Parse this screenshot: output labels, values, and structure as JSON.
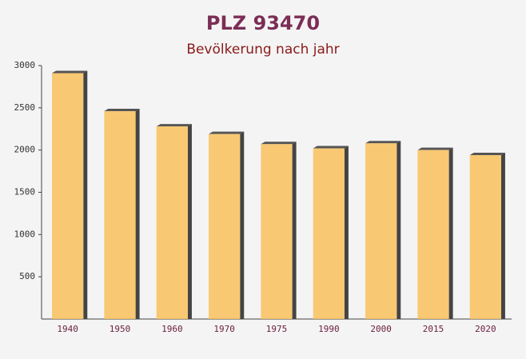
{
  "chart_data": {
    "type": "bar",
    "title": "PLZ 93470",
    "subtitle": "Bevölkerung nach jahr",
    "categories": [
      "1940",
      "1950",
      "1960",
      "1970",
      "1975",
      "1990",
      "2000",
      "2015",
      "2020"
    ],
    "values": [
      2910,
      2460,
      2280,
      2190,
      2070,
      2020,
      2080,
      2000,
      1940
    ],
    "color": "#f8c05c",
    "ylim": [
      0,
      3000
    ],
    "yticks": [
      500,
      1000,
      1500,
      2000,
      2500,
      3000
    ],
    "grid": false
  }
}
